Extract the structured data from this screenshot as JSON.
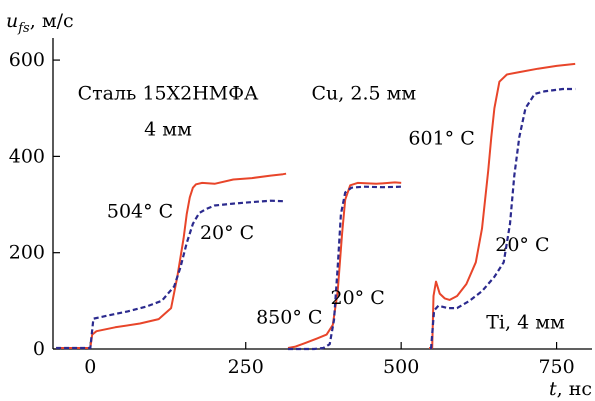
{
  "chart_data": {
    "type": "line",
    "xlabel": {
      "var": "t",
      "unit": ", нс"
    },
    "ylabel": {
      "var": "u",
      "sub": "fs",
      "unit": ", м/с"
    },
    "xlim": [
      -60,
      815
    ],
    "ylim": [
      0,
      650
    ],
    "xticks": [
      0,
      250,
      500,
      750
    ],
    "yticks": [
      0,
      200,
      400,
      600
    ],
    "grid": false,
    "annotations": [
      {
        "id": "steel-title",
        "text": "Сталь 15Х2НМФА",
        "x": 125,
        "y": 518
      },
      {
        "id": "steel-thickness",
        "text": "4 мм",
        "x": 125,
        "y": 443
      },
      {
        "id": "cu-title",
        "text": "Cu, 2.5 мм",
        "x": 440,
        "y": 518
      },
      {
        "id": "ti-title",
        "text": "Ti, 4 мм",
        "x": 700,
        "y": 43
      },
      {
        "id": "steel-hot",
        "text": "504° C",
        "x": 80,
        "y": 273
      },
      {
        "id": "steel-cold",
        "text": "20° C",
        "x": 220,
        "y": 228
      },
      {
        "id": "cu-hot",
        "text": "850° C",
        "x": 320,
        "y": 53
      },
      {
        "id": "cu-cold",
        "text": "20° C",
        "x": 430,
        "y": 93
      },
      {
        "id": "ti-hot",
        "text": "601° C",
        "x": 565,
        "y": 425
      },
      {
        "id": "ti-cold",
        "text": "20° C",
        "x": 695,
        "y": 203
      }
    ],
    "series": [
      {
        "style": "solid",
        "color": "#e8452a",
        "x": [
          -55,
          0,
          3,
          10,
          40,
          80,
          110,
          130,
          140,
          150,
          155,
          160,
          165,
          170,
          180,
          200,
          230,
          260,
          290,
          310,
          315
        ],
        "y": [
          2,
          2,
          30,
          37,
          45,
          53,
          62,
          85,
          150,
          230,
          280,
          315,
          335,
          342,
          345,
          343,
          352,
          355,
          360,
          363,
          364
        ]
      },
      {
        "style": "dashed",
        "color": "#2b2a8e",
        "x": [
          -55,
          0,
          5,
          30,
          60,
          90,
          115,
          135,
          145,
          155,
          165,
          175,
          185,
          200,
          230,
          260,
          290,
          310
        ],
        "y": [
          2,
          2,
          63,
          70,
          78,
          88,
          100,
          130,
          170,
          220,
          260,
          282,
          290,
          298,
          302,
          305,
          308,
          307
        ]
      },
      {
        "style": "solid",
        "color": "#e8452a",
        "x": [
          318,
          330,
          345,
          365,
          380,
          390,
          398,
          405,
          410,
          418,
          430,
          460,
          490,
          500
        ],
        "y": [
          2,
          5,
          12,
          22,
          30,
          50,
          120,
          240,
          310,
          340,
          345,
          343,
          346,
          345
        ]
      },
      {
        "style": "dashed",
        "color": "#2b2a8e",
        "x": [
          318,
          340,
          360,
          375,
          385,
          392,
          398,
          403,
          410,
          420,
          440,
          470,
          500
        ],
        "y": [
          0,
          0,
          0,
          2,
          10,
          60,
          170,
          280,
          325,
          335,
          337,
          336,
          337
        ]
      },
      {
        "style": "solid",
        "color": "#e8452a",
        "x": [
          545,
          550,
          552,
          556,
          562,
          570,
          578,
          590,
          605,
          620,
          630,
          640,
          645,
          650,
          658,
          670,
          690,
          720,
          750,
          780
        ],
        "y": [
          2,
          2,
          110,
          140,
          115,
          105,
          102,
          110,
          135,
          180,
          250,
          370,
          440,
          500,
          555,
          570,
          575,
          582,
          588,
          592
        ]
      },
      {
        "style": "dashed",
        "color": "#2b2a8e",
        "x": [
          548,
          553,
          560,
          575,
          590,
          610,
          630,
          650,
          665,
          675,
          682,
          690,
          700,
          715,
          730,
          760,
          780
        ],
        "y": [
          0,
          80,
          90,
          85,
          85,
          100,
          120,
          150,
          180,
          260,
          360,
          440,
          500,
          530,
          535,
          540,
          540
        ]
      }
    ]
  }
}
